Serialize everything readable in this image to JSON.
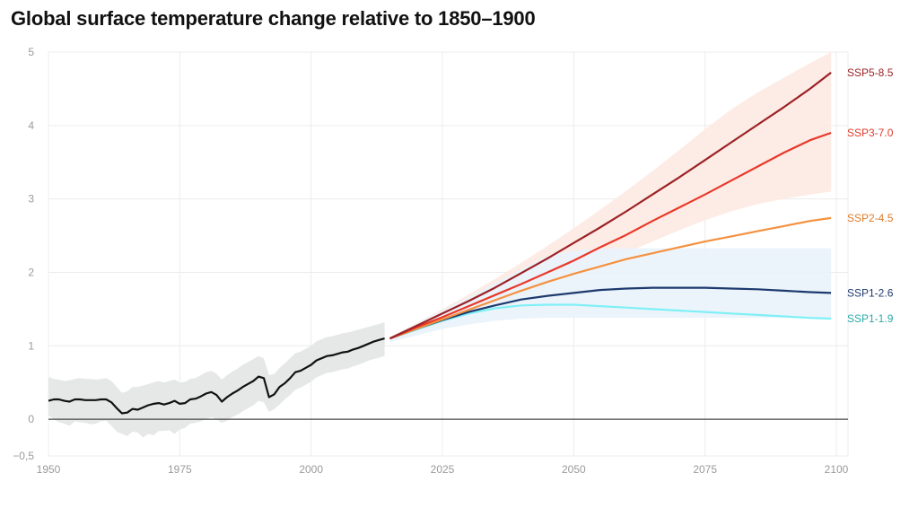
{
  "chart_data": {
    "type": "line",
    "title": "Global surface temperature change relative to 1850–1900",
    "xlabel": "",
    "ylabel": "",
    "xlim": [
      1950,
      2100
    ],
    "ylim": [
      -0.5,
      5
    ],
    "x_ticks": [
      1950,
      1975,
      2000,
      2025,
      2050,
      2075,
      2100
    ],
    "y_ticks": [
      -0.5,
      0,
      1,
      2,
      3,
      4,
      5
    ],
    "y_tick_labels": [
      "−0,5",
      "0",
      "1",
      "2",
      "3",
      "4",
      "5"
    ],
    "grid": true,
    "zero_line": true,
    "historical": {
      "name": "",
      "color": "#111111",
      "band_color": "#e6e8e8",
      "x": [
        1950,
        1951,
        1952,
        1953,
        1954,
        1955,
        1956,
        1957,
        1958,
        1959,
        1960,
        1961,
        1962,
        1963,
        1964,
        1965,
        1966,
        1967,
        1968,
        1969,
        1970,
        1971,
        1972,
        1973,
        1974,
        1975,
        1976,
        1977,
        1978,
        1979,
        1980,
        1981,
        1982,
        1983,
        1984,
        1985,
        1986,
        1987,
        1988,
        1989,
        1990,
        1991,
        1992,
        1993,
        1994,
        1995,
        1996,
        1997,
        1998,
        1999,
        2000,
        2001,
        2002,
        2003,
        2004,
        2005,
        2006,
        2007,
        2008,
        2009,
        2010,
        2011,
        2012,
        2013,
        2014
      ],
      "y": [
        0.25,
        0.27,
        0.27,
        0.25,
        0.24,
        0.27,
        0.27,
        0.26,
        0.26,
        0.26,
        0.27,
        0.27,
        0.23,
        0.15,
        0.08,
        0.09,
        0.14,
        0.13,
        0.16,
        0.19,
        0.21,
        0.22,
        0.2,
        0.22,
        0.25,
        0.21,
        0.22,
        0.27,
        0.28,
        0.31,
        0.35,
        0.37,
        0.33,
        0.24,
        0.3,
        0.35,
        0.39,
        0.44,
        0.48,
        0.52,
        0.58,
        0.56,
        0.3,
        0.34,
        0.44,
        0.49,
        0.56,
        0.64,
        0.66,
        0.7,
        0.74,
        0.8,
        0.83,
        0.86,
        0.87,
        0.89,
        0.91,
        0.92,
        0.95,
        0.97,
        1.0,
        1.03,
        1.06,
        1.08,
        1.1
      ],
      "lower": [
        0.05,
        0.0,
        -0.04,
        -0.06,
        -0.09,
        -0.03,
        -0.04,
        -0.05,
        -0.07,
        -0.06,
        -0.03,
        -0.02,
        -0.09,
        -0.17,
        -0.2,
        -0.23,
        -0.17,
        -0.18,
        -0.25,
        -0.2,
        -0.22,
        -0.16,
        -0.16,
        -0.15,
        -0.2,
        -0.14,
        -0.12,
        -0.06,
        -0.05,
        -0.03,
        0.0,
        0.03,
        0.0,
        -0.05,
        -0.02,
        0.03,
        0.06,
        0.11,
        0.15,
        0.19,
        0.25,
        0.23,
        0.1,
        0.14,
        0.2,
        0.27,
        0.33,
        0.4,
        0.43,
        0.47,
        0.51,
        0.57,
        0.6,
        0.63,
        0.64,
        0.66,
        0.68,
        0.69,
        0.72,
        0.74,
        0.77,
        0.8,
        0.82,
        0.84,
        0.86
      ],
      "upper": [
        0.58,
        0.55,
        0.54,
        0.52,
        0.53,
        0.55,
        0.56,
        0.55,
        0.55,
        0.54,
        0.55,
        0.56,
        0.52,
        0.44,
        0.36,
        0.38,
        0.44,
        0.44,
        0.46,
        0.48,
        0.5,
        0.52,
        0.5,
        0.52,
        0.54,
        0.5,
        0.51,
        0.55,
        0.56,
        0.6,
        0.64,
        0.66,
        0.62,
        0.54,
        0.6,
        0.65,
        0.69,
        0.74,
        0.78,
        0.82,
        0.86,
        0.83,
        0.6,
        0.62,
        0.7,
        0.76,
        0.83,
        0.9,
        0.92,
        0.96,
        1.0,
        1.06,
        1.09,
        1.12,
        1.13,
        1.15,
        1.17,
        1.18,
        1.2,
        1.22,
        1.24,
        1.26,
        1.28,
        1.3,
        1.32
      ]
    },
    "series": [
      {
        "name": "SSP5-8.5",
        "color": "#9b2226",
        "label_color": "#9b2226",
        "x": [
          2015,
          2020,
          2025,
          2030,
          2035,
          2040,
          2045,
          2050,
          2055,
          2060,
          2065,
          2070,
          2075,
          2080,
          2085,
          2090,
          2095,
          2099
        ],
        "values": [
          1.1,
          1.27,
          1.44,
          1.61,
          1.79,
          1.99,
          2.19,
          2.4,
          2.61,
          2.83,
          3.06,
          3.29,
          3.53,
          3.77,
          4.01,
          4.25,
          4.5,
          4.72
        ]
      },
      {
        "name": "SSP3-7.0",
        "color": "#e8392b",
        "label_color": "#e03a2c",
        "x": [
          2015,
          2020,
          2025,
          2030,
          2035,
          2040,
          2045,
          2050,
          2055,
          2060,
          2065,
          2070,
          2075,
          2080,
          2085,
          2090,
          2095,
          2099
        ],
        "values": [
          1.1,
          1.25,
          1.39,
          1.54,
          1.69,
          1.84,
          2.0,
          2.16,
          2.34,
          2.51,
          2.7,
          2.88,
          3.06,
          3.25,
          3.44,
          3.63,
          3.8,
          3.9
        ]
      },
      {
        "name": "SSP2-4.5",
        "color": "#f4913f",
        "label_color": "#e07b2a",
        "x": [
          2015,
          2020,
          2025,
          2030,
          2035,
          2040,
          2045,
          2050,
          2055,
          2060,
          2065,
          2070,
          2075,
          2080,
          2085,
          2090,
          2095,
          2099
        ],
        "values": [
          1.1,
          1.23,
          1.36,
          1.49,
          1.62,
          1.75,
          1.87,
          1.98,
          2.08,
          2.18,
          2.26,
          2.34,
          2.42,
          2.49,
          2.56,
          2.63,
          2.7,
          2.74
        ]
      },
      {
        "name": "SSP1-2.6",
        "color": "#1d3a6e",
        "label_color": "#1d3a6e",
        "x": [
          2015,
          2020,
          2025,
          2030,
          2035,
          2040,
          2045,
          2050,
          2055,
          2060,
          2065,
          2070,
          2075,
          2080,
          2085,
          2090,
          2095,
          2099
        ],
        "values": [
          1.1,
          1.23,
          1.35,
          1.46,
          1.55,
          1.63,
          1.68,
          1.72,
          1.76,
          1.78,
          1.79,
          1.79,
          1.79,
          1.78,
          1.77,
          1.75,
          1.73,
          1.72
        ]
      },
      {
        "name": "SSP1-1.9",
        "color": "#7ff0f6",
        "label_color": "#2aaaa8",
        "x": [
          2015,
          2020,
          2025,
          2030,
          2035,
          2040,
          2045,
          2050,
          2055,
          2060,
          2065,
          2070,
          2075,
          2080,
          2085,
          2090,
          2095,
          2099
        ],
        "values": [
          1.1,
          1.22,
          1.34,
          1.44,
          1.51,
          1.55,
          1.56,
          1.56,
          1.54,
          1.52,
          1.5,
          1.48,
          1.46,
          1.44,
          1.42,
          1.4,
          1.38,
          1.37
        ]
      }
    ],
    "bands": [
      {
        "color": "#fdeae2",
        "x": [
          2015,
          2020,
          2025,
          2030,
          2035,
          2040,
          2045,
          2050,
          2055,
          2060,
          2065,
          2070,
          2075,
          2080,
          2085,
          2090,
          2095,
          2099
        ],
        "lower": [
          1.05,
          1.18,
          1.3,
          1.42,
          1.55,
          1.69,
          1.83,
          1.97,
          2.12,
          2.27,
          2.42,
          2.57,
          2.71,
          2.83,
          2.93,
          3.0,
          3.06,
          3.1
        ],
        "upper": [
          1.12,
          1.31,
          1.5,
          1.7,
          1.91,
          2.13,
          2.36,
          2.6,
          2.85,
          3.11,
          3.38,
          3.66,
          3.95,
          4.22,
          4.45,
          4.65,
          4.85,
          5.0
        ]
      },
      {
        "color": "#eaf3fb",
        "x": [
          2015,
          2020,
          2025,
          2030,
          2035,
          2040,
          2045,
          2050,
          2055,
          2060,
          2065,
          2070,
          2075,
          2080,
          2085,
          2090,
          2095,
          2099
        ],
        "lower": [
          1.05,
          1.14,
          1.23,
          1.29,
          1.34,
          1.37,
          1.38,
          1.38,
          1.38,
          1.38,
          1.38,
          1.38,
          1.38,
          1.38,
          1.38,
          1.38,
          1.38,
          1.38
        ],
        "upper": [
          1.12,
          1.3,
          1.48,
          1.66,
          1.85,
          2.04,
          2.22,
          2.3,
          2.32,
          2.33,
          2.33,
          2.33,
          2.33,
          2.33,
          2.33,
          2.33,
          2.33,
          2.33
        ]
      }
    ]
  }
}
